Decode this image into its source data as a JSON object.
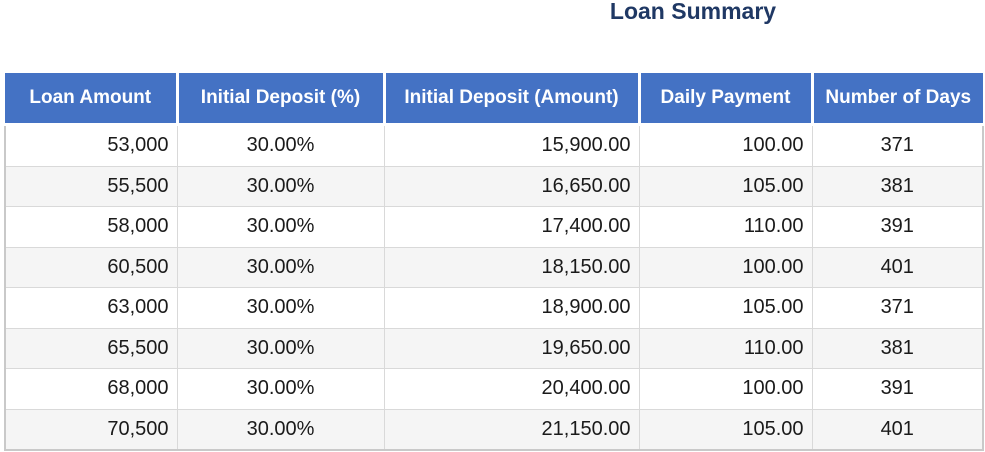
{
  "title": {
    "text": "Loan Summary"
  },
  "colors": {
    "title_text": "#1F3864",
    "header_bg": "#4472C4",
    "header_text": "#FFFFFF",
    "row_stripe": "#F5F5F5",
    "row_plain": "#FFFFFF",
    "grid_line": "#D9D9D9",
    "outer_border": "#C9C9C9",
    "body_text": "#1A1A1A"
  },
  "table": {
    "columns": [
      {
        "label": "Loan Amount",
        "align": "right"
      },
      {
        "label": "Initial Deposit (%)",
        "align": "center"
      },
      {
        "label": "Initial Deposit (Amount)",
        "align": "right"
      },
      {
        "label": "Daily Payment",
        "align": "right"
      },
      {
        "label": "Number of Days",
        "align": "center"
      }
    ],
    "rows": [
      [
        "53,000",
        "30.00%",
        "15,900.00",
        "100.00",
        "371"
      ],
      [
        "55,500",
        "30.00%",
        "16,650.00",
        "105.00",
        "381"
      ],
      [
        "58,000",
        "30.00%",
        "17,400.00",
        "110.00",
        "391"
      ],
      [
        "60,500",
        "30.00%",
        "18,150.00",
        "100.00",
        "401"
      ],
      [
        "63,000",
        "30.00%",
        "18,900.00",
        "105.00",
        "371"
      ],
      [
        "65,500",
        "30.00%",
        "19,650.00",
        "110.00",
        "381"
      ],
      [
        "68,000",
        "30.00%",
        "20,400.00",
        "100.00",
        "391"
      ],
      [
        "70,500",
        "30.00%",
        "21,150.00",
        "105.00",
        "401"
      ]
    ]
  }
}
